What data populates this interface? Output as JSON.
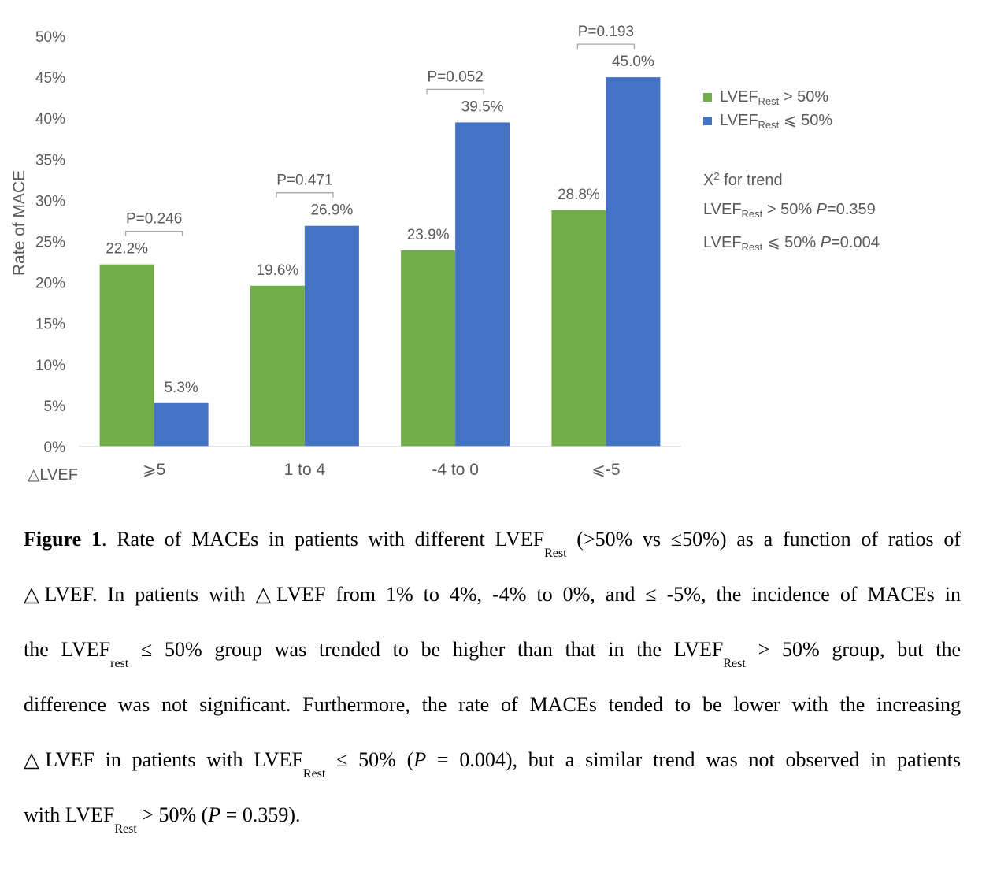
{
  "chart_data": {
    "type": "bar",
    "ylabel": "Rate of MACE",
    "xlabel": "△LVEF",
    "ylim": [
      0,
      50
    ],
    "yticks": [
      "0%",
      "5%",
      "10%",
      "15%",
      "20%",
      "25%",
      "30%",
      "35%",
      "40%",
      "45%",
      "50%"
    ],
    "categories": [
      "⩾5",
      "1 to 4",
      "-4 to 0",
      "⩽-5"
    ],
    "series": [
      {
        "name": "LVEF_Rest > 50%",
        "color": "#70AD47",
        "values": [
          22.2,
          19.6,
          23.9,
          28.8
        ],
        "labels": [
          "22.2%",
          "19.6%",
          "23.9%",
          "28.8%"
        ]
      },
      {
        "name": "LVEF_Rest ⩽ 50%",
        "color": "#4472C4",
        "values": [
          5.3,
          26.9,
          39.5,
          45.0
        ],
        "labels": [
          "5.3%",
          "26.9%",
          "39.5%",
          "45.0%"
        ]
      }
    ],
    "p_values": [
      "P=0.246",
      "P=0.471",
      "P=0.052",
      "P=0.193"
    ],
    "grid": false,
    "legend_position": "right"
  },
  "legend": {
    "item1": {
      "base": "LVEF",
      "sub": "Rest",
      "rest": " > 50%"
    },
    "item2": {
      "base": "LVEF",
      "sub": "Rest",
      "rest": " ⩽ 50%"
    }
  },
  "trend": {
    "title_base": "X",
    "title_sup": "2",
    "title_rest": " for trend",
    "line1": {
      "base": "LVEF",
      "sub": "Rest",
      "rest": " > 50% ",
      "p": "P",
      "pval": "=0.359"
    },
    "line2": {
      "base": "LVEF",
      "sub": "Rest",
      "rest": " ⩽ 50% ",
      "p": "P",
      "pval": "=0.004"
    }
  },
  "caption": {
    "fig_label": "Figure 1",
    "l1_a": ". Rate of MACEs in patients with different LVEF",
    "l1_sub": "Rest",
    "l1_b": " (>50% vs ≤50%) as a function of ratios of",
    "l2": "△LVEF. In patients with △LVEF from 1% to 4%, -4% to 0%, and ≤ -5%, the incidence of MACEs in",
    "l3_a": "the LVEF",
    "l3_sub1": "rest",
    "l3_b": " ≤ 50% group was trended to be higher than that in the LVEF",
    "l3_sub2": "Rest",
    "l3_c": " > 50% group, but the",
    "l4": "difference was not significant. Furthermore, the rate of MACEs tended to be lower with the increasing",
    "l5_a": "△LVEF in patients with LVEF",
    "l5_sub": "Rest",
    "l5_b": " ≤ 50% (",
    "l5_p": "P",
    "l5_c": " = 0.004), but a similar trend was not observed in patients",
    "l6_a": "with LVEF",
    "l6_sub": "Rest",
    "l6_b": " > 50% (",
    "l6_p": "P",
    "l6_c": " = 0.359)."
  }
}
